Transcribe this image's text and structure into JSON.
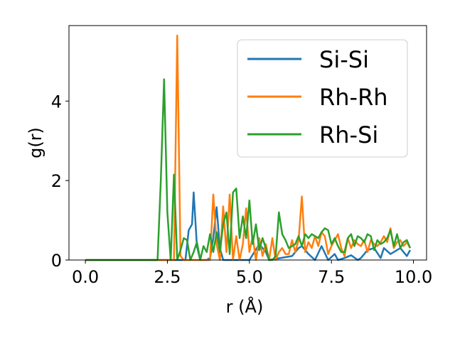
{
  "chart_data": {
    "type": "line",
    "title": "",
    "xlabel": "r (Å)",
    "ylabel": "g(r)",
    "xlim": [
      -0.5,
      10.4
    ],
    "ylim": [
      0,
      5.9
    ],
    "grid": false,
    "legend_position": "top-right",
    "x_ticks": [
      0.0,
      2.5,
      5.0,
      7.5,
      10.0
    ],
    "x_tick_labels": [
      "0.0",
      "2.5",
      "5.0",
      "7.5",
      "10.0"
    ],
    "y_ticks": [
      0,
      2,
      4
    ],
    "y_tick_labels": [
      "0",
      "2",
      "4"
    ],
    "series": [
      {
        "name": "Si-Si",
        "color": "#1f77b4",
        "x": [
          0,
          3.05,
          3.15,
          3.25,
          3.3,
          3.4,
          3.5,
          3.6,
          3.7,
          3.8,
          3.9,
          4.0,
          4.1,
          4.2,
          5.0,
          5.3,
          5.4,
          5.5,
          5.6,
          6.3,
          6.5,
          6.6,
          6.7,
          6.8,
          7.0,
          7.2,
          7.4,
          7.6,
          7.7,
          7.9,
          8.1,
          8.3,
          8.4,
          8.6,
          8.8,
          9.0,
          9.1,
          9.3,
          9.4,
          9.6,
          9.8,
          9.9
        ],
        "y": [
          0,
          0,
          0.75,
          0.9,
          1.7,
          0.35,
          0,
          0,
          0,
          0.05,
          0.55,
          1.33,
          0.3,
          0,
          0,
          0.4,
          0.3,
          0.2,
          0,
          0.1,
          0.3,
          0.35,
          0.25,
          0.15,
          0,
          0.35,
          0,
          0.15,
          0,
          0.05,
          0.12,
          0,
          0.05,
          0.25,
          0.3,
          0.05,
          0.3,
          0.15,
          0.2,
          0.3,
          0.1,
          0.25
        ]
      },
      {
        "name": "Rh-Rh",
        "color": "#ff7f0e",
        "x": [
          0,
          2.7,
          2.8,
          2.9,
          3.0,
          3.2,
          3.4,
          3.6,
          3.8,
          3.9,
          4.0,
          4.1,
          4.2,
          4.3,
          4.4,
          4.5,
          4.6,
          4.7,
          4.8,
          4.9,
          5.0,
          5.1,
          5.2,
          5.3,
          5.4,
          5.5,
          5.6,
          5.7,
          5.8,
          5.9,
          6.0,
          6.1,
          6.2,
          6.3,
          6.4,
          6.5,
          6.6,
          6.7,
          6.8,
          6.9,
          7.0,
          7.1,
          7.2,
          7.3,
          7.4,
          7.5,
          7.6,
          7.7,
          7.8,
          7.9,
          8.0,
          8.1,
          8.2,
          8.3,
          8.4,
          8.5,
          8.6,
          8.7,
          8.8,
          8.9,
          9.0,
          9.1,
          9.2,
          9.3,
          9.4,
          9.5,
          9.6,
          9.7,
          9.8,
          9.9
        ],
        "y": [
          0,
          0,
          5.65,
          0.1,
          0,
          0,
          0,
          0,
          0,
          1.65,
          0.4,
          0,
          1.35,
          0.2,
          1.65,
          0,
          0.6,
          0,
          0.4,
          1.3,
          0.2,
          0.6,
          0,
          0.55,
          0.1,
          0.4,
          0,
          0.55,
          0,
          0.2,
          0.3,
          0.15,
          0.15,
          0.5,
          0.2,
          0.5,
          1.6,
          0.2,
          0.45,
          0.3,
          0.6,
          0.35,
          0.7,
          0.6,
          0.15,
          0.35,
          0.5,
          0.65,
          0.3,
          0.1,
          0.55,
          0.3,
          0.5,
          0.4,
          0.35,
          0.5,
          0.2,
          0.5,
          0.4,
          0.35,
          0.45,
          0.6,
          0.45,
          0.8,
          0.3,
          0.45,
          0.5,
          0.35,
          0.45,
          0.3
        ]
      },
      {
        "name": "Rh-Si",
        "color": "#2ca02c",
        "x": [
          0,
          2.2,
          2.3,
          2.4,
          2.5,
          2.6,
          2.7,
          2.8,
          2.9,
          3.0,
          3.1,
          3.2,
          3.3,
          3.4,
          3.5,
          3.6,
          3.7,
          3.8,
          3.9,
          4.0,
          4.1,
          4.2,
          4.3,
          4.4,
          4.5,
          4.6,
          4.7,
          4.8,
          4.9,
          5.0,
          5.1,
          5.2,
          5.3,
          5.4,
          5.5,
          5.6,
          5.7,
          5.8,
          5.9,
          6.0,
          6.1,
          6.2,
          6.3,
          6.4,
          6.5,
          6.6,
          6.7,
          6.8,
          6.9,
          7.0,
          7.1,
          7.2,
          7.3,
          7.4,
          7.5,
          7.6,
          7.7,
          7.8,
          7.9,
          8.0,
          8.1,
          8.2,
          8.3,
          8.4,
          8.5,
          8.6,
          8.7,
          8.8,
          8.9,
          9.0,
          9.1,
          9.2,
          9.3,
          9.4,
          9.5,
          9.6,
          9.7,
          9.8,
          9.9
        ],
        "y": [
          0,
          0,
          2.0,
          4.55,
          1.2,
          0,
          2.15,
          0,
          0.25,
          0.55,
          0.5,
          0,
          0.2,
          0.45,
          0,
          0.35,
          0.2,
          0.65,
          0.2,
          0.7,
          0.2,
          0.9,
          1.2,
          0.15,
          1.7,
          1.8,
          0.55,
          1.1,
          0.55,
          1.5,
          0.4,
          0.9,
          0.25,
          0.55,
          0.3,
          0,
          0,
          0.1,
          1.2,
          0.65,
          0.5,
          0.3,
          0.35,
          0.4,
          0.6,
          0.35,
          0.65,
          0.55,
          0.65,
          0.6,
          0.55,
          0.7,
          0.8,
          0.75,
          0.4,
          0.55,
          0.35,
          0.2,
          0.2,
          0.55,
          0.65,
          0.35,
          0.6,
          0.55,
          0.45,
          0.65,
          0.6,
          0.25,
          0.5,
          0.4,
          0.45,
          0.55,
          0.75,
          0.35,
          0.65,
          0.3,
          0.45,
          0.5,
          0.3
        ]
      }
    ]
  }
}
